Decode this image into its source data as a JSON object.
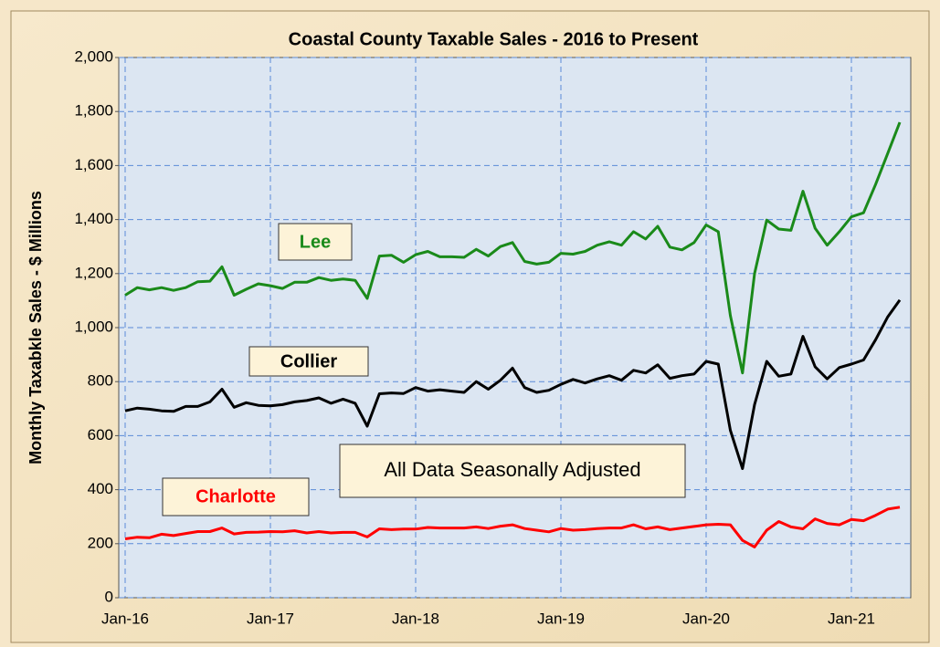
{
  "chart_data": {
    "type": "line",
    "title": "Coastal County Taxable Sales - 2016 to Present",
    "y_label": "Monthly Taxabkle Sales - $ Millions",
    "categories": [
      "Jan-16",
      null,
      null,
      null,
      null,
      null,
      null,
      null,
      null,
      null,
      null,
      null,
      "Jan-17",
      null,
      null,
      null,
      null,
      null,
      null,
      null,
      null,
      null,
      null,
      null,
      "Jan-18",
      null,
      null,
      null,
      null,
      null,
      null,
      null,
      null,
      null,
      null,
      null,
      "Jan-19",
      null,
      null,
      null,
      null,
      null,
      null,
      null,
      null,
      null,
      null,
      null,
      "Jan-20",
      null,
      null,
      null,
      null,
      null,
      null,
      null,
      null,
      null,
      null,
      null,
      "Jan-21",
      null,
      null,
      null,
      null
    ],
    "series": [
      {
        "name": "Lee",
        "color": "#1a8a1a",
        "values": [
          1120,
          1148,
          1140,
          1148,
          1138,
          1148,
          1170,
          1172,
          1225,
          1120,
          1142,
          1162,
          1155,
          1145,
          1168,
          1168,
          1185,
          1175,
          1180,
          1175,
          1108,
          1265,
          1268,
          1242,
          1270,
          1282,
          1262,
          1262,
          1260,
          1290,
          1265,
          1300,
          1315,
          1245,
          1235,
          1242,
          1275,
          1272,
          1282,
          1305,
          1318,
          1305,
          1355,
          1328,
          1375,
          1298,
          1288,
          1315,
          1380,
          1355,
          1045,
          832,
          1200,
          1398,
          1365,
          1360,
          1505,
          1368,
          1305,
          1355,
          1410,
          1425,
          1530,
          1645,
          1760
        ]
      },
      {
        "name": "Collier",
        "color": "#000000",
        "values": [
          692,
          702,
          698,
          692,
          690,
          708,
          708,
          725,
          772,
          705,
          722,
          712,
          710,
          715,
          725,
          730,
          740,
          720,
          735,
          720,
          635,
          755,
          758,
          756,
          778,
          765,
          770,
          765,
          760,
          800,
          772,
          805,
          850,
          778,
          760,
          768,
          790,
          808,
          795,
          810,
          822,
          805,
          842,
          832,
          862,
          812,
          822,
          828,
          875,
          865,
          620,
          478,
          715,
          875,
          820,
          828,
          968,
          855,
          810,
          852,
          865,
          880,
          955,
          1040,
          1102
        ]
      },
      {
        "name": "Charlotte",
        "color": "#ff0000",
        "values": [
          218,
          224,
          222,
          235,
          230,
          238,
          245,
          245,
          258,
          236,
          242,
          243,
          245,
          244,
          248,
          240,
          245,
          240,
          242,
          242,
          225,
          255,
          252,
          254,
          254,
          260,
          258,
          258,
          258,
          262,
          256,
          265,
          270,
          256,
          250,
          244,
          256,
          250,
          252,
          256,
          258,
          258,
          270,
          255,
          262,
          252,
          258,
          264,
          270,
          272,
          270,
          212,
          188,
          250,
          282,
          262,
          255,
          292,
          275,
          270,
          290,
          285,
          305,
          328,
          335
        ]
      }
    ],
    "annotation": "All Data Seasonally Adjusted",
    "ylim": [
      0,
      2000
    ],
    "yticks": [
      0,
      200,
      400,
      600,
      800,
      {
        "value": 1000,
        "label": "1,000"
      },
      {
        "value": 1200,
        "label": "1,200"
      },
      {
        "value": 1400,
        "label": "1,400"
      },
      {
        "value": 1600,
        "label": "1,600"
      },
      {
        "value": 1800,
        "label": "1,800"
      },
      {
        "value": 2000,
        "label": "2,000"
      }
    ],
    "grid": true
  }
}
